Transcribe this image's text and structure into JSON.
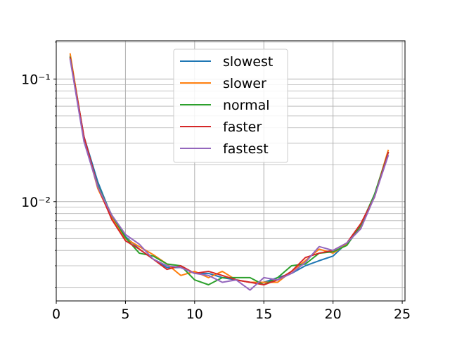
{
  "chart_data": {
    "type": "line",
    "title": "",
    "xlabel": "",
    "ylabel": "",
    "x_scale": "linear",
    "y_scale": "log",
    "xlim": [
      0.0,
      25.2
    ],
    "ylim": [
      0.00155,
      0.205
    ],
    "grid": {
      "major": true,
      "minor_y": true
    },
    "legend_position": "top-center",
    "x_ticks": [
      0,
      5,
      10,
      15,
      20,
      25
    ],
    "x_tick_labels": [
      "0",
      "5",
      "10",
      "15",
      "20",
      "25"
    ],
    "y_ticks": [
      0.01,
      0.1
    ],
    "y_tick_labels": [
      "10⁻²",
      "10⁻¹"
    ],
    "x": [
      1,
      2,
      3,
      4,
      5,
      6,
      7,
      8,
      9,
      10,
      11,
      12,
      13,
      14,
      15,
      16,
      17,
      18,
      19,
      20,
      21,
      22,
      23,
      24
    ],
    "series": [
      {
        "name": "slowest",
        "color": "#1f77b4",
        "values": [
          0.155,
          0.034,
          0.0145,
          0.0076,
          0.0052,
          0.0041,
          0.0034,
          0.0029,
          0.0029,
          0.0026,
          0.0026,
          0.0024,
          0.0023,
          0.0022,
          0.0022,
          0.0024,
          0.0026,
          0.003,
          0.0033,
          0.0036,
          0.0046,
          0.0062,
          0.0112,
          0.0255
        ]
      },
      {
        "name": "slower",
        "color": "#ff7f0e",
        "values": [
          0.162,
          0.033,
          0.0128,
          0.0074,
          0.005,
          0.0043,
          0.0037,
          0.0031,
          0.0025,
          0.0027,
          0.0024,
          0.0027,
          0.0023,
          0.0022,
          0.0022,
          0.0022,
          0.0027,
          0.0033,
          0.0041,
          0.0038,
          0.0045,
          0.0063,
          0.0112,
          0.0265
        ]
      },
      {
        "name": "normal",
        "color": "#2ca02c",
        "values": [
          0.152,
          0.033,
          0.0135,
          0.0078,
          0.0051,
          0.0038,
          0.0036,
          0.0031,
          0.003,
          0.0023,
          0.0021,
          0.0024,
          0.0024,
          0.0024,
          0.0021,
          0.0024,
          0.003,
          0.0031,
          0.0038,
          0.0039,
          0.0044,
          0.0064,
          0.0115,
          0.0255
        ]
      },
      {
        "name": "faster",
        "color": "#d62728",
        "values": [
          0.15,
          0.034,
          0.0133,
          0.0072,
          0.0048,
          0.0041,
          0.0034,
          0.0028,
          0.003,
          0.0026,
          0.0027,
          0.0025,
          0.0023,
          0.0022,
          0.0021,
          0.0023,
          0.0027,
          0.0035,
          0.0038,
          0.004,
          0.0046,
          0.0066,
          0.0109,
          0.0255
        ]
      },
      {
        "name": "fastest",
        "color": "#9467bd",
        "values": [
          0.146,
          0.031,
          0.0132,
          0.0078,
          0.0054,
          0.0045,
          0.0034,
          0.003,
          0.0029,
          0.0026,
          0.0025,
          0.0022,
          0.0023,
          0.0019,
          0.0024,
          0.0023,
          0.0026,
          0.0032,
          0.0043,
          0.004,
          0.0046,
          0.006,
          0.011,
          0.024
        ]
      }
    ]
  }
}
